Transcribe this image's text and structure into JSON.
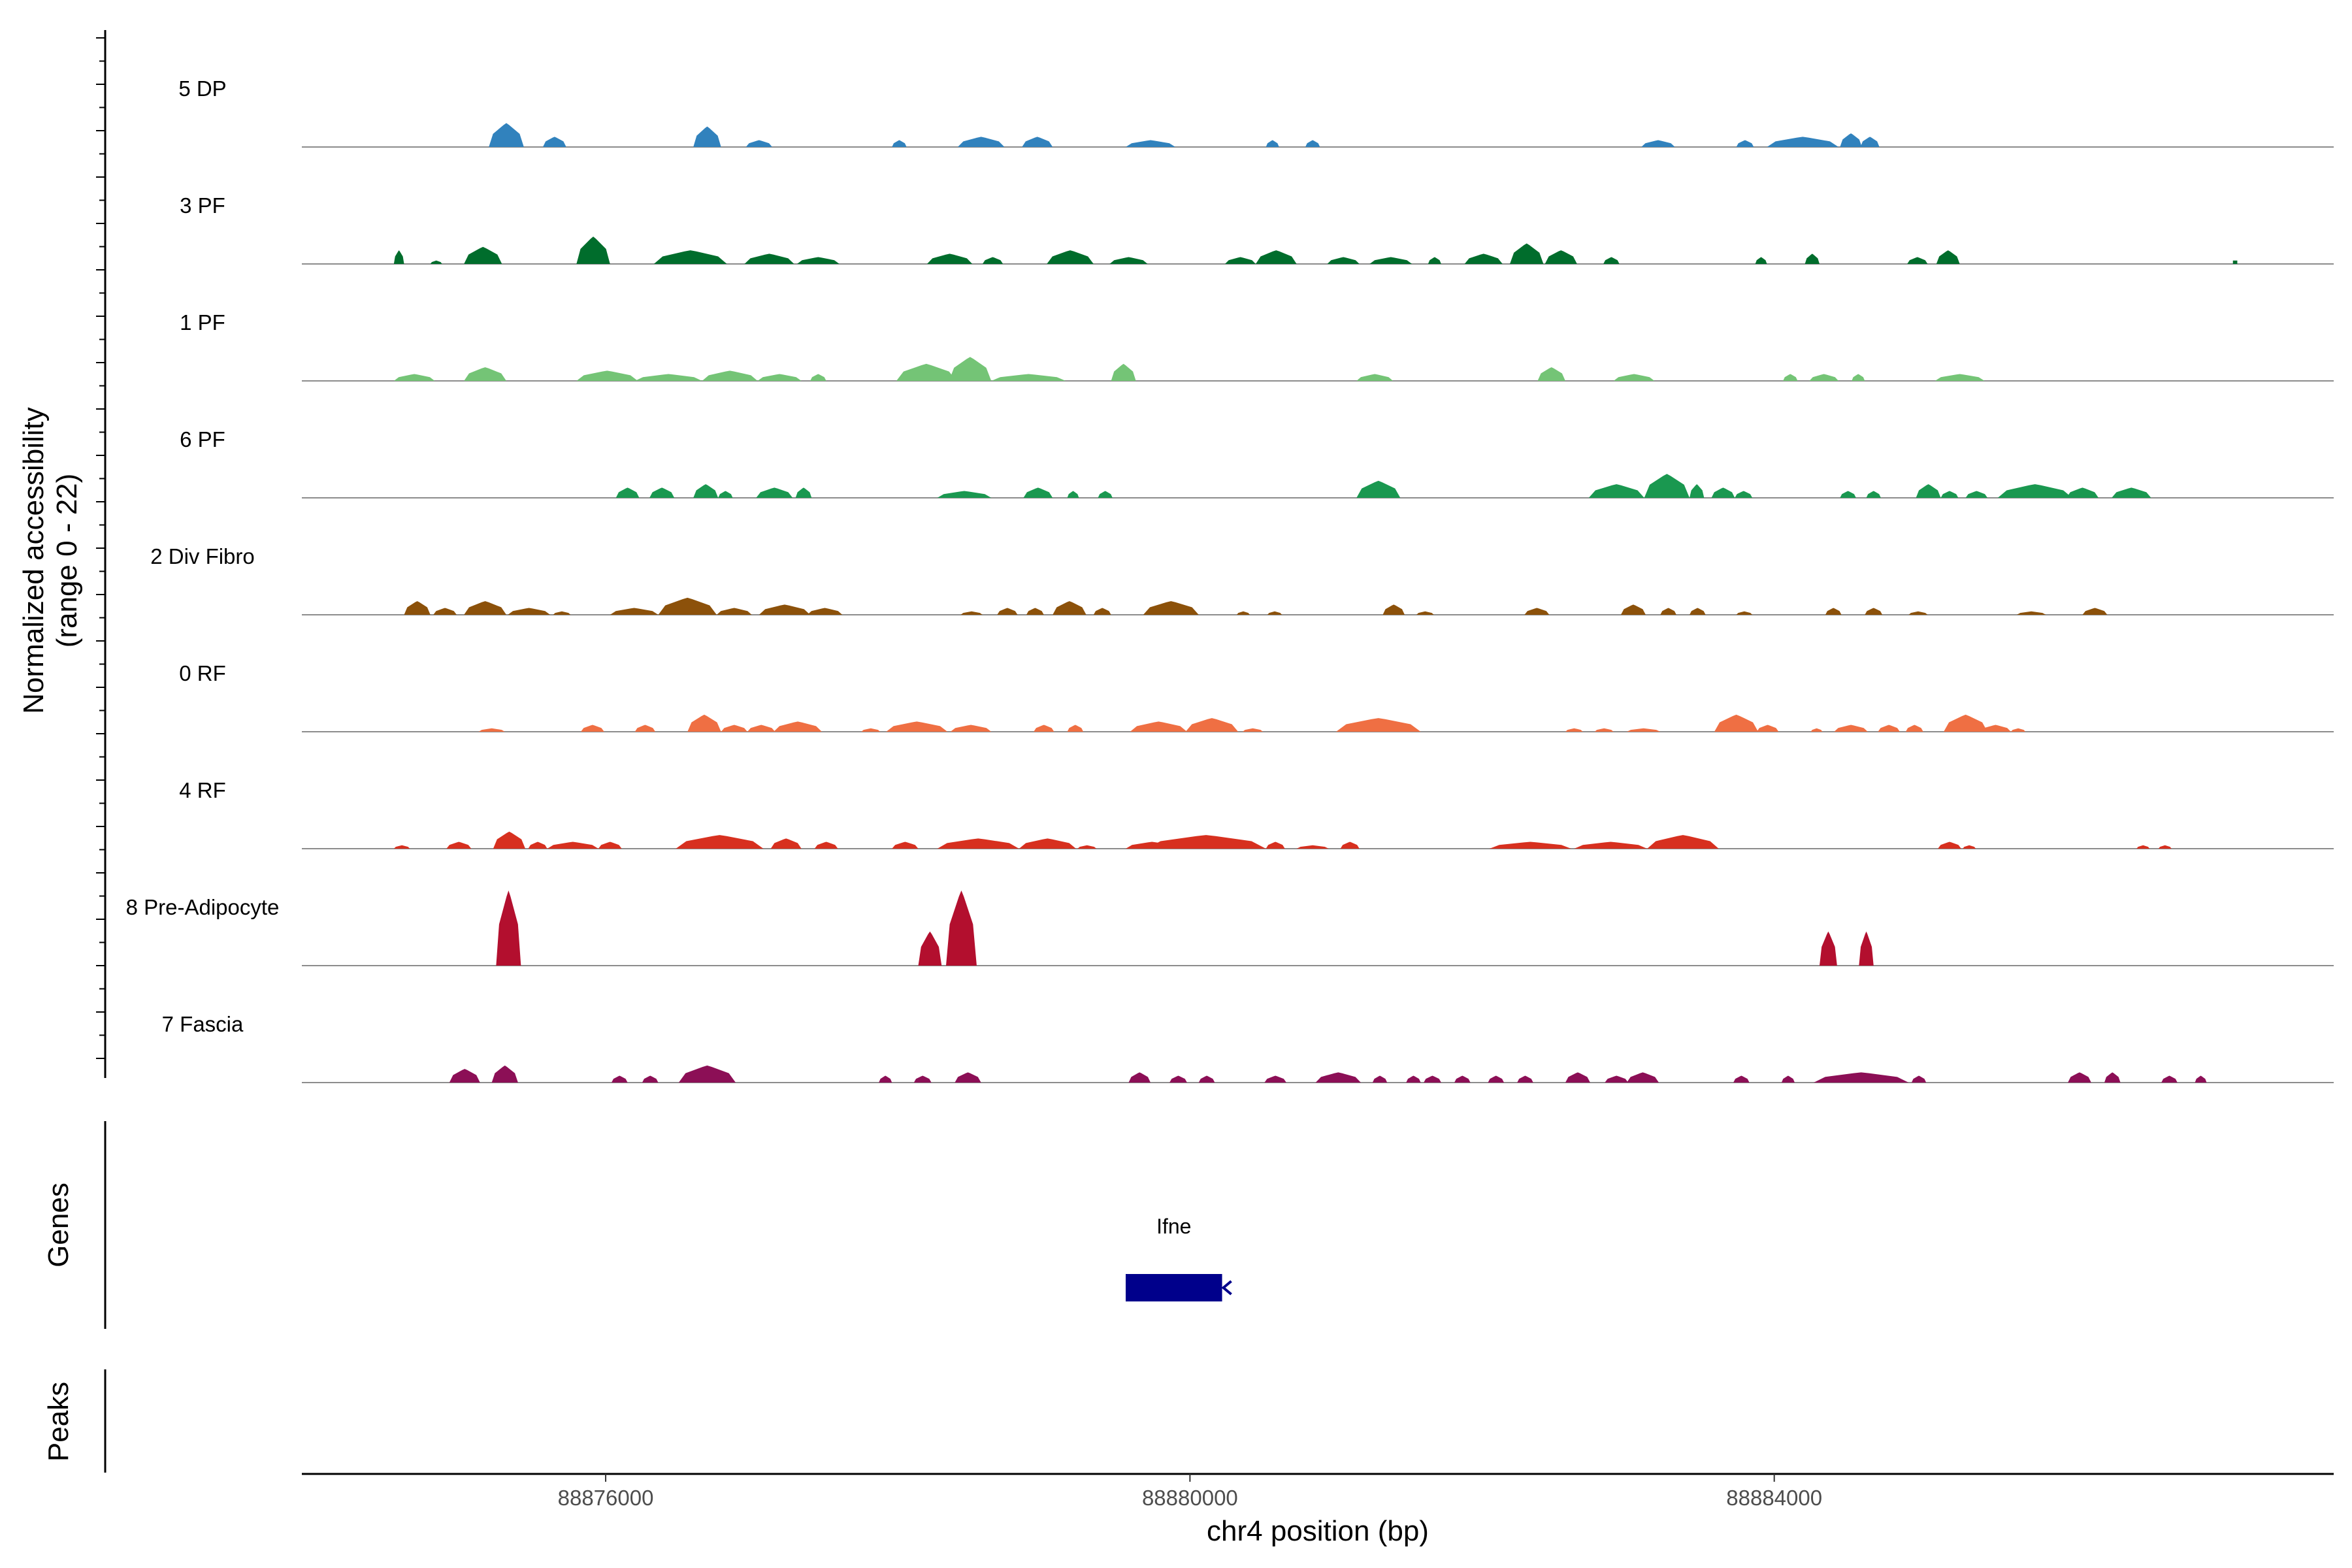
{
  "chart_data": {
    "type": "area",
    "title": "",
    "xlabel": "chr4 position (bp)",
    "ylabel_lines": [
      "Normalized accessibility",
      "(range 0 - 22)"
    ],
    "ylim": [
      0,
      22
    ],
    "xlim": [
      88873920,
      88887830
    ],
    "x_ticks": [
      88876000,
      88880000,
      88884000
    ],
    "x_tick_labels": [
      "88876000",
      "88880000",
      "88884000"
    ],
    "panel_labels": {
      "genes": "Genes",
      "peaks": "Peaks"
    },
    "tracks": [
      {
        "name": "5 DP",
        "color": "#3182bd",
        "peaks": [
          [
            88875200,
            88875440,
            7
          ],
          [
            88875570,
            88875730,
            3
          ],
          [
            88876600,
            88876790,
            6
          ],
          [
            88876960,
            88877140,
            2
          ],
          [
            88877960,
            88878060,
            2
          ],
          [
            88878410,
            88878730,
            3
          ],
          [
            88878850,
            88879060,
            3
          ],
          [
            88879560,
            88879900,
            2
          ],
          [
            88880520,
            88880610,
            2
          ],
          [
            88880790,
            88880890,
            2
          ],
          [
            88883090,
            88883320,
            2
          ],
          [
            88883740,
            88883860,
            2
          ],
          [
            88883950,
            88884440,
            3
          ],
          [
            88884450,
            88884600,
            4
          ],
          [
            88884590,
            88884720,
            3
          ]
        ]
      },
      {
        "name": "3 PF",
        "color": "#006d2c",
        "peaks": [
          [
            88874550,
            88874620,
            4
          ],
          [
            88874800,
            88874880,
            1
          ],
          [
            88875030,
            88875290,
            5
          ],
          [
            88875800,
            88876030,
            8
          ],
          [
            88876330,
            88876830,
            4
          ],
          [
            88876950,
            88877290,
            3
          ],
          [
            88877310,
            88877600,
            2
          ],
          [
            88878200,
            88878510,
            3
          ],
          [
            88878580,
            88878720,
            2
          ],
          [
            88879020,
            88879340,
            4
          ],
          [
            88879450,
            88879710,
            2
          ],
          [
            88880240,
            88880450,
            2
          ],
          [
            88880450,
            88880730,
            4
          ],
          [
            88880940,
            88881160,
            2
          ],
          [
            88881230,
            88881520,
            2
          ],
          [
            88881630,
            88881720,
            2
          ],
          [
            88881880,
            88882140,
            3
          ],
          [
            88882190,
            88882420,
            6
          ],
          [
            88882430,
            88882650,
            4
          ],
          [
            88882830,
            88882940,
            2
          ],
          [
            88883870,
            88883950,
            2
          ],
          [
            88884210,
            88884310,
            3
          ],
          [
            88884910,
            88885050,
            2
          ],
          [
            88885110,
            88885270,
            4
          ],
          [
            88887140,
            88887170,
            1
          ]
        ]
      },
      {
        "name": "1 PF",
        "color": "#74c476",
        "peaks": [
          [
            88874550,
            88874830,
            2
          ],
          [
            88875030,
            88875320,
            4
          ],
          [
            88875800,
            88876220,
            3
          ],
          [
            88876200,
            88876660,
            2
          ],
          [
            88876660,
            88877040,
            3
          ],
          [
            88877040,
            88877340,
            2
          ],
          [
            88877400,
            88877510,
            2
          ],
          [
            88877990,
            88878400,
            5
          ],
          [
            88878350,
            88878640,
            7
          ],
          [
            88878640,
            88879150,
            2
          ],
          [
            88879460,
            88879630,
            5
          ],
          [
            88881140,
            88881390,
            2
          ],
          [
            88882380,
            88882570,
            4
          ],
          [
            88882900,
            88883180,
            2
          ],
          [
            88884060,
            88884160,
            2
          ],
          [
            88884240,
            88884440,
            2
          ],
          [
            88884530,
            88884620,
            2
          ],
          [
            88885100,
            88885440,
            2
          ]
        ]
      },
      {
        "name": "6 PF",
        "color": "#1a9850",
        "peaks": [
          [
            88876070,
            88876230,
            3
          ],
          [
            88876300,
            88876470,
            3
          ],
          [
            88876600,
            88876770,
            4
          ],
          [
            88876770,
            88876870,
            2
          ],
          [
            88877030,
            88877280,
            3
          ],
          [
            88877300,
            88877410,
            3
          ],
          [
            88878270,
            88878640,
            2
          ],
          [
            88878860,
            88879060,
            3
          ],
          [
            88879160,
            88879240,
            2
          ],
          [
            88879370,
            88879470,
            2
          ],
          [
            88881140,
            88881440,
            5
          ],
          [
            88882730,
            88883110,
            4
          ],
          [
            88883110,
            88883420,
            7
          ],
          [
            88883420,
            88883520,
            4
          ],
          [
            88883570,
            88883730,
            3
          ],
          [
            88883730,
            88883850,
            2
          ],
          [
            88884450,
            88884560,
            2
          ],
          [
            88884630,
            88884730,
            2
          ],
          [
            88884970,
            88885140,
            4
          ],
          [
            88885140,
            88885260,
            2
          ],
          [
            88885310,
            88885460,
            2
          ],
          [
            88885530,
            88886040,
            4
          ],
          [
            88886000,
            88886220,
            3
          ],
          [
            88886310,
            88886580,
            3
          ]
        ]
      },
      {
        "name": "2 Div Fibro",
        "color": "#8c510a",
        "peaks": [
          [
            88874620,
            88874800,
            4
          ],
          [
            88874820,
            88874980,
            2
          ],
          [
            88875030,
            88875320,
            4
          ],
          [
            88875330,
            88875620,
            2
          ],
          [
            88875640,
            88875760,
            1
          ],
          [
            88876030,
            88876360,
            2
          ],
          [
            88876360,
            88876760,
            5
          ],
          [
            88876760,
            88877000,
            2
          ],
          [
            88877050,
            88877400,
            3
          ],
          [
            88877380,
            88877620,
            2
          ],
          [
            88878430,
            88878580,
            1
          ],
          [
            88878680,
            88878820,
            2
          ],
          [
            88878880,
            88879000,
            2
          ],
          [
            88879060,
            88879290,
            4
          ],
          [
            88879340,
            88879460,
            2
          ],
          [
            88879680,
            88880060,
            4
          ],
          [
            88880320,
            88880410,
            1
          ],
          [
            88880530,
            88880630,
            1
          ],
          [
            88881320,
            88881470,
            3
          ],
          [
            88881550,
            88881670,
            1
          ],
          [
            88882290,
            88882460,
            2
          ],
          [
            88882950,
            88883120,
            3
          ],
          [
            88883220,
            88883330,
            2
          ],
          [
            88883420,
            88883530,
            2
          ],
          [
            88883740,
            88883850,
            1
          ],
          [
            88884350,
            88884460,
            2
          ],
          [
            88884620,
            88884740,
            2
          ],
          [
            88884920,
            88885050,
            1
          ],
          [
            88885660,
            88885860,
            1
          ],
          [
            88886110,
            88886280,
            2
          ]
        ]
      },
      {
        "name": "0 RF",
        "color": "#ef6f43",
        "peaks": [
          [
            88875130,
            88875310,
            1
          ],
          [
            88875830,
            88875990,
            2
          ],
          [
            88876200,
            88876340,
            2
          ],
          [
            88876560,
            88876790,
            5
          ],
          [
            88876790,
            88876970,
            2
          ],
          [
            88876970,
            88877160,
            2
          ],
          [
            88877150,
            88877480,
            3
          ],
          [
            88877750,
            88877880,
            1
          ],
          [
            88877920,
            88878340,
            3
          ],
          [
            88878360,
            88878640,
            2
          ],
          [
            88878930,
            88879070,
            2
          ],
          [
            88879160,
            88879270,
            2
          ],
          [
            88879590,
            88879980,
            3
          ],
          [
            88879970,
            88880330,
            4
          ],
          [
            88880360,
            88880500,
            1
          ],
          [
            88881000,
            88881580,
            4
          ],
          [
            88882570,
            88882690,
            1
          ],
          [
            88882770,
            88882900,
            1
          ],
          [
            88882990,
            88883220,
            1
          ],
          [
            88883590,
            88883890,
            5
          ],
          [
            88883880,
            88884030,
            2
          ],
          [
            88884250,
            88884330,
            1
          ],
          [
            88884410,
            88884640,
            2
          ],
          [
            88884710,
            88884860,
            2
          ],
          [
            88884900,
            88885020,
            2
          ],
          [
            88885160,
            88885460,
            5
          ],
          [
            88885410,
            88885620,
            2
          ],
          [
            88885620,
            88885720,
            1
          ]
        ]
      },
      {
        "name": "4 RF",
        "color": "#d7301f",
        "peaks": [
          [
            88874550,
            88874660,
            1
          ],
          [
            88874910,
            88875080,
            2
          ],
          [
            88875230,
            88875450,
            5
          ],
          [
            88875470,
            88875600,
            2
          ],
          [
            88875600,
            88875950,
            2
          ],
          [
            88875950,
            88876110,
            2
          ],
          [
            88876480,
            88877080,
            4
          ],
          [
            88877130,
            88877340,
            3
          ],
          [
            88877430,
            88877590,
            2
          ],
          [
            88877960,
            88878140,
            2
          ],
          [
            88878270,
            88878830,
            3
          ],
          [
            88878830,
            88879220,
            3
          ],
          [
            88879230,
            88879360,
            1
          ],
          [
            88879560,
            88879920,
            2
          ],
          [
            88879700,
            88880520,
            4
          ],
          [
            88880520,
            88880650,
            2
          ],
          [
            88880730,
            88880950,
            1
          ],
          [
            88881030,
            88881160,
            2
          ],
          [
            88882050,
            88882610,
            2
          ],
          [
            88882630,
            88883130,
            2
          ],
          [
            88883130,
            88883620,
            4
          ],
          [
            88885120,
            88885280,
            2
          ],
          [
            88885290,
            88885380,
            1
          ],
          [
            88886480,
            88886570,
            1
          ],
          [
            88886630,
            88886720,
            1
          ]
        ]
      },
      {
        "name": "8 Pre-Adipocyte",
        "color": "#b30f2e",
        "peaks": [
          [
            88875250,
            88875420,
            22
          ],
          [
            88878140,
            88878300,
            10
          ],
          [
            88878330,
            88878540,
            22
          ],
          [
            88884310,
            88884430,
            10
          ],
          [
            88884580,
            88884680,
            10
          ]
        ]
      },
      {
        "name": "7 Fascia",
        "color": "#8c0f56",
        "peaks": [
          [
            88874930,
            88875140,
            4
          ],
          [
            88875220,
            88875400,
            5
          ],
          [
            88876040,
            88876150,
            2
          ],
          [
            88876250,
            88876360,
            2
          ],
          [
            88876500,
            88876890,
            5
          ],
          [
            88877870,
            88877960,
            2
          ],
          [
            88878110,
            88878230,
            2
          ],
          [
            88878390,
            88878570,
            3
          ],
          [
            88879580,
            88879730,
            3
          ],
          [
            88879860,
            88879980,
            2
          ],
          [
            88880060,
            88880170,
            2
          ],
          [
            88880510,
            88880660,
            2
          ],
          [
            88880860,
            88881170,
            3
          ],
          [
            88881250,
            88881350,
            2
          ],
          [
            88881480,
            88881580,
            2
          ],
          [
            88881600,
            88881720,
            2
          ],
          [
            88881810,
            88881920,
            2
          ],
          [
            88882040,
            88882150,
            2
          ],
          [
            88882240,
            88882350,
            2
          ],
          [
            88882570,
            88882740,
            3
          ],
          [
            88882840,
            88883000,
            2
          ],
          [
            88882990,
            88883210,
            3
          ],
          [
            88883720,
            88883830,
            2
          ],
          [
            88884050,
            88884140,
            2
          ],
          [
            88884270,
            88884920,
            3
          ],
          [
            88884940,
            88885040,
            2
          ],
          [
            88886010,
            88886170,
            3
          ],
          [
            88886260,
            88886370,
            3
          ],
          [
            88886650,
            88886760,
            2
          ],
          [
            88886880,
            88886960,
            2
          ]
        ]
      }
    ],
    "genes": [
      {
        "name": "Ifne",
        "start": 88879560,
        "end": 88880220,
        "strand": "-",
        "color": "#00008b"
      }
    ]
  }
}
